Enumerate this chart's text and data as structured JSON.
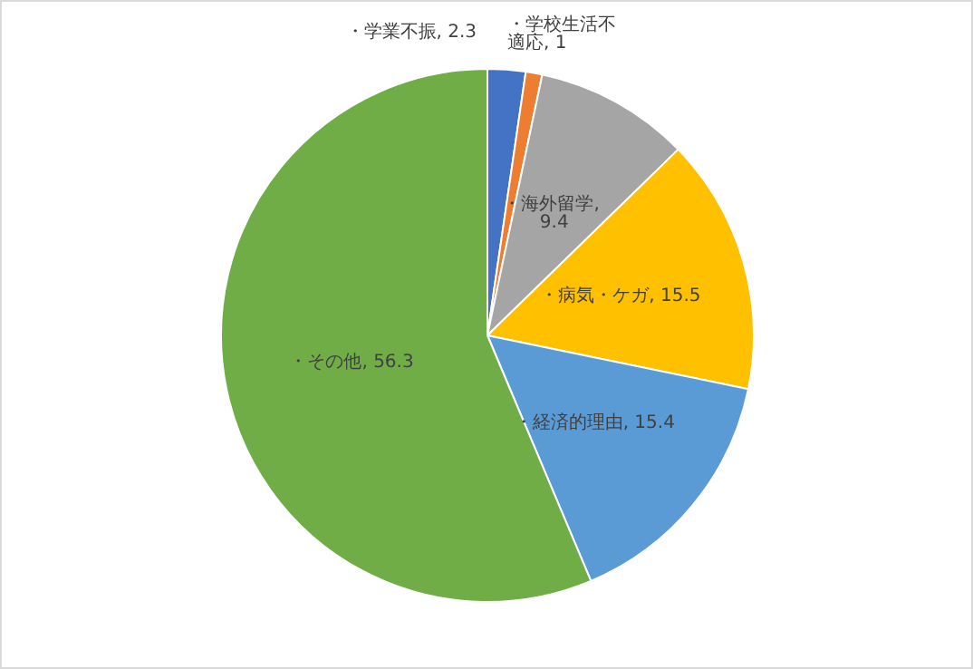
{
  "chart_data": {
    "type": "pie",
    "categories": [
      "・学業不振",
      "・学校生活不適応",
      "・海外留学",
      "・病気・ケガ",
      "・経済的理由",
      "・その他"
    ],
    "values": [
      2.3,
      1,
      9.4,
      15.5,
      15.4,
      56.3
    ],
    "value_labels": [
      ", 2.3",
      ", 1",
      ", 9.4",
      ", 15.5",
      ", 15.4",
      ", 56.3"
    ],
    "colors": [
      "#4472c4",
      "#ed7d31",
      "#a5a5a5",
      "#ffc000",
      "#5b9bd5",
      "#70ad47"
    ],
    "data_labels": true,
    "legend": false
  }
}
